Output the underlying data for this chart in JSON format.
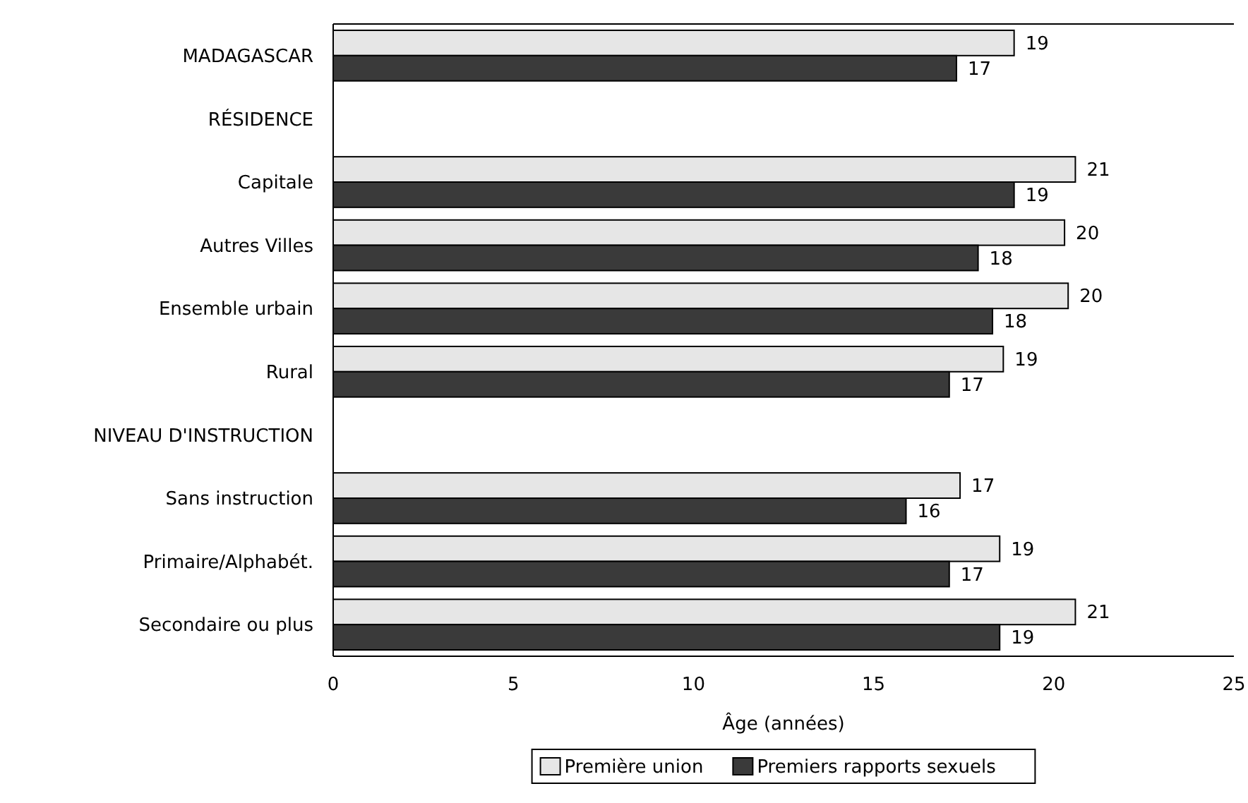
{
  "chart_data": {
    "type": "bar",
    "orientation": "horizontal",
    "xlabel": "Âge (années)",
    "categories": [
      "MADAGASCAR",
      "RÉSIDENCE",
      "Capitale",
      "Autres Villes",
      "Ensemble urbain",
      "Rural",
      "NIVEAU D'INSTRUCTION",
      "Sans instruction",
      "Primaire/Alphabét.",
      "Secondaire ou plus"
    ],
    "series": [
      {
        "name": "Première union",
        "color": "#e6e6e6",
        "values": [
          18.9,
          null,
          20.6,
          20.3,
          20.4,
          18.6,
          null,
          17.4,
          18.5,
          20.6
        ],
        "value_labels": [
          "19",
          null,
          "21",
          "20",
          "20",
          "19",
          null,
          "17",
          "19",
          "21"
        ]
      },
      {
        "name": "Premiers rapports sexuels",
        "color": "#3a3a3a",
        "values": [
          17.3,
          null,
          18.9,
          17.9,
          18.3,
          17.1,
          null,
          15.9,
          17.1,
          18.5
        ],
        "value_labels": [
          "17",
          null,
          "19",
          "18",
          "18",
          "17",
          null,
          "16",
          "17",
          "19"
        ]
      }
    ],
    "xlim": [
      0,
      25
    ],
    "xticks": [
      0,
      5,
      10,
      15,
      20,
      25
    ],
    "grid": false,
    "legend": "bottom"
  }
}
